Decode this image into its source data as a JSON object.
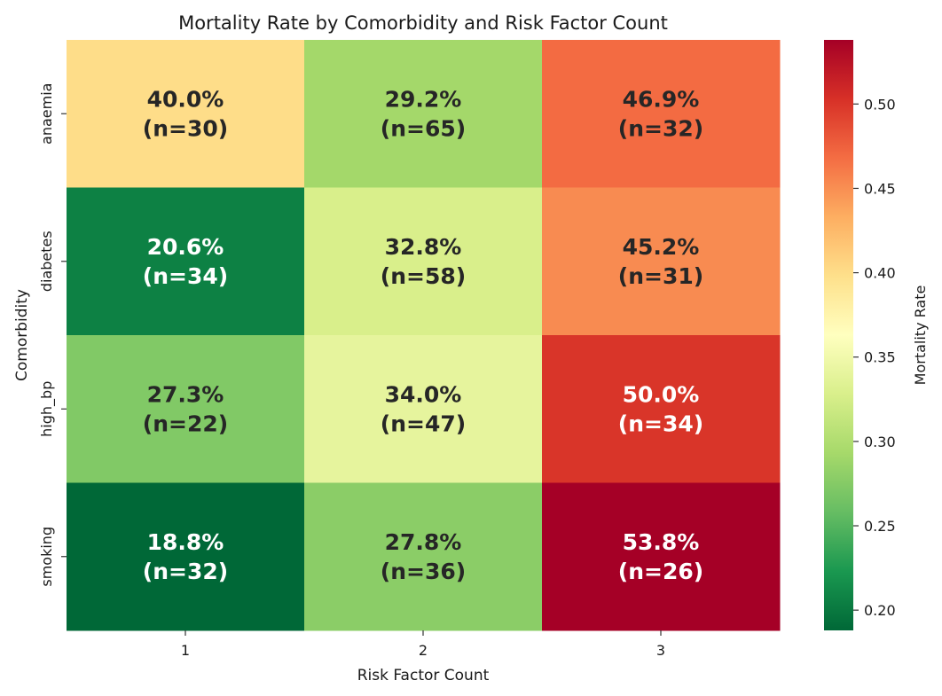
{
  "chart_data": {
    "type": "heatmap",
    "title": "Mortality Rate by Comorbidity and Risk Factor Count",
    "xlabel": "Risk Factor Count",
    "ylabel": "Comorbidity",
    "x": [
      "1",
      "2",
      "3"
    ],
    "y": [
      "anaemia",
      "diabetes",
      "high_bp",
      "smoking"
    ],
    "values": [
      [
        0.4,
        0.292,
        0.469
      ],
      [
        0.206,
        0.328,
        0.452
      ],
      [
        0.273,
        0.34,
        0.5
      ],
      [
        0.188,
        0.278,
        0.538
      ]
    ],
    "counts": [
      [
        30,
        65,
        32
      ],
      [
        34,
        58,
        31
      ],
      [
        22,
        47,
        34
      ],
      [
        32,
        36,
        26
      ]
    ],
    "cell_labels": [
      [
        [
          "40.0%",
          "(n=30)"
        ],
        [
          "29.2%",
          "(n=65)"
        ],
        [
          "46.9%",
          "(n=32)"
        ]
      ],
      [
        [
          "20.6%",
          "(n=34)"
        ],
        [
          "32.8%",
          "(n=58)"
        ],
        [
          "45.2%",
          "(n=31)"
        ]
      ],
      [
        [
          "27.3%",
          "(n=22)"
        ],
        [
          "34.0%",
          "(n=47)"
        ],
        [
          "50.0%",
          "(n=34)"
        ]
      ],
      [
        [
          "18.8%",
          "(n=32)"
        ],
        [
          "27.8%",
          "(n=36)"
        ],
        [
          "53.8%",
          "(n=26)"
        ]
      ]
    ],
    "colormap": "RdYlGn_r",
    "colorbar": {
      "label": "Mortality Rate",
      "vmin": 0.188,
      "vmax": 0.538,
      "ticks": [
        0.2,
        0.25,
        0.3,
        0.35,
        0.4,
        0.45,
        0.5
      ],
      "tick_labels": [
        "0.20",
        "0.25",
        "0.30",
        "0.35",
        "0.40",
        "0.45",
        "0.50"
      ]
    },
    "label_colors": {
      "dark": "#262626",
      "light": "#ffffff"
    }
  }
}
